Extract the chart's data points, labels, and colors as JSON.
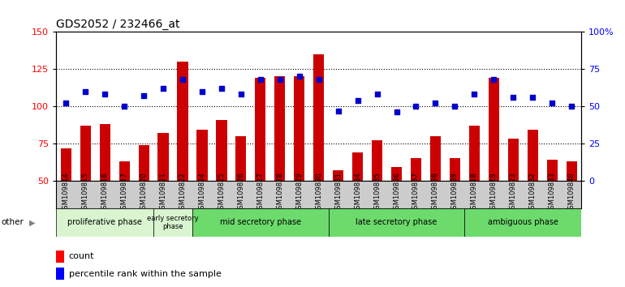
{
  "title": "GDS2052 / 232466_at",
  "samples": [
    "GSM109814",
    "GSM109815",
    "GSM109816",
    "GSM109817",
    "GSM109820",
    "GSM109821",
    "GSM109822",
    "GSM109824",
    "GSM109825",
    "GSM109826",
    "GSM109827",
    "GSM109828",
    "GSM109829",
    "GSM109830",
    "GSM109831",
    "GSM109834",
    "GSM109835",
    "GSM109836",
    "GSM109837",
    "GSM109838",
    "GSM109839",
    "GSM109818",
    "GSM109819",
    "GSM109823",
    "GSM109832",
    "GSM109833",
    "GSM109840"
  ],
  "counts": [
    72,
    87,
    88,
    63,
    74,
    82,
    130,
    84,
    91,
    80,
    119,
    120,
    120,
    135,
    57,
    69,
    77,
    59,
    65,
    80,
    65,
    87,
    119,
    78,
    84,
    64,
    63
  ],
  "percentiles": [
    52,
    60,
    58,
    50,
    57,
    62,
    68,
    60,
    62,
    58,
    68,
    68,
    70,
    68,
    47,
    54,
    58,
    46,
    50,
    52,
    50,
    58,
    68,
    56,
    56,
    52,
    50
  ],
  "phases": [
    {
      "label": "proliferative phase",
      "start": 0,
      "end": 5,
      "color": "#d8f5d0"
    },
    {
      "label": "early secretory\nphase",
      "start": 5,
      "end": 7,
      "color": "#d8f5d0"
    },
    {
      "label": "mid secretory phase",
      "start": 7,
      "end": 14,
      "color": "#6cdb6c"
    },
    {
      "label": "late secretory phase",
      "start": 14,
      "end": 21,
      "color": "#6cdb6c"
    },
    {
      "label": "ambiguous phase",
      "start": 21,
      "end": 27,
      "color": "#6cdb6c"
    }
  ],
  "ylim_left": [
    50,
    150
  ],
  "ylim_right": [
    0,
    100
  ],
  "yticks_left": [
    50,
    75,
    100,
    125,
    150
  ],
  "yticks_right": [
    0,
    25,
    50,
    75,
    100
  ],
  "bar_color": "#cc0000",
  "scatter_color": "#0000cc",
  "bar_baseline": 50,
  "plot_bg": "#ffffff",
  "tick_area_bg": "#cccccc"
}
